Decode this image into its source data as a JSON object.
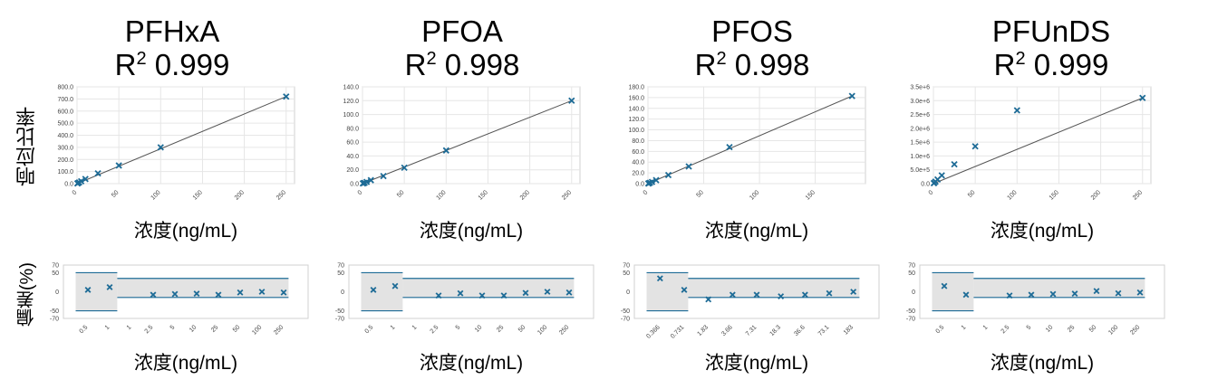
{
  "colors": {
    "marker": "#1d6b96",
    "fit_line": "#555555",
    "limit_line": "#1d6b96",
    "limit_band": "#e3e3e3",
    "grid": "#e6e6e6"
  },
  "shared": {
    "response_ylabel": "响应比率",
    "bias_ylabel": "偏差(%)",
    "xlabel": "浓度(ng/mL)"
  },
  "chart_data": [
    {
      "type": "scatter",
      "compound": "PFHxA",
      "r2": "0.999",
      "title_line1": "PFHxA",
      "r2_prefix": "R",
      "r2_sup": "2",
      "xlabel": "浓度(ng/mL)",
      "ylabel": "响应比率",
      "xlim": [
        0,
        260
      ],
      "ylim": [
        0,
        800
      ],
      "xticks": [
        0,
        50,
        100,
        150,
        200,
        250
      ],
      "yticks": [
        0,
        100,
        200,
        300,
        400,
        500,
        600,
        700,
        800
      ],
      "ytick_labels": [
        "0.0",
        "100.0",
        "200.0",
        "300.0",
        "400.0",
        "500.0",
        "600.0",
        "700.0",
        "800.0"
      ],
      "points": [
        [
          0.5,
          2
        ],
        [
          1,
          4
        ],
        [
          2.5,
          10
        ],
        [
          5,
          20
        ],
        [
          10,
          38
        ],
        [
          25,
          85
        ],
        [
          50,
          150
        ],
        [
          100,
          300
        ],
        [
          250,
          720
        ]
      ],
      "fit": [
        [
          0,
          0
        ],
        [
          250,
          720
        ]
      ],
      "bias": {
        "ylabel": "偏差(%)",
        "ylim": [
          -70,
          70
        ],
        "ytick_labels": [
          "70",
          "50",
          "0",
          "-50",
          "-70"
        ],
        "categories": [
          "0.5",
          "1",
          "1",
          "2.5",
          "5",
          "10",
          "25",
          "50",
          "100",
          "250"
        ],
        "values": [
          5,
          12,
          null,
          -8,
          -6,
          -5,
          -8,
          -2,
          0,
          -2
        ],
        "limit_lines": [
          [
            50,
            -50
          ],
          [
            35,
            -15
          ]
        ]
      }
    },
    {
      "type": "scatter",
      "compound": "PFOA",
      "r2": "0.998",
      "title_line1": "PFOA",
      "r2_prefix": "R",
      "r2_sup": "2",
      "xlabel": "浓度(ng/mL)",
      "ylabel": "响应比率",
      "xlim": [
        0,
        260
      ],
      "ylim": [
        0,
        140
      ],
      "xticks": [
        0,
        50,
        100,
        150,
        200,
        250
      ],
      "yticks": [
        0,
        20,
        40,
        60,
        80,
        100,
        120,
        140
      ],
      "ytick_labels": [
        "0.0",
        "20.0",
        "40.0",
        "60.0",
        "80.0",
        "100.0",
        "120.0",
        "140.0"
      ],
      "points": [
        [
          0.5,
          0.3
        ],
        [
          1,
          0.6
        ],
        [
          2.5,
          1.2
        ],
        [
          5,
          2.5
        ],
        [
          10,
          5
        ],
        [
          25,
          11
        ],
        [
          50,
          23
        ],
        [
          100,
          48
        ],
        [
          250,
          120
        ]
      ],
      "fit": [
        [
          0,
          0
        ],
        [
          250,
          120
        ]
      ],
      "bias": {
        "ylabel": "偏差(%)",
        "ylim": [
          -70,
          70
        ],
        "ytick_labels": [
          "70",
          "50",
          "0",
          "-50",
          "-70"
        ],
        "categories": [
          "0.5",
          "1",
          "1",
          "2.5",
          "5",
          "10",
          "25",
          "50",
          "100",
          "250"
        ],
        "values": [
          5,
          15,
          null,
          -10,
          -4,
          -10,
          -10,
          -3,
          0,
          -2
        ],
        "limit_lines": [
          [
            50,
            -50
          ],
          [
            35,
            -15
          ]
        ]
      }
    },
    {
      "type": "scatter",
      "compound": "PFOS",
      "r2": "0.998",
      "title_line1": "PFOS",
      "r2_prefix": "R",
      "r2_sup": "2",
      "xlabel": "浓度(ng/mL)",
      "ylabel": "响应比率",
      "xlim": [
        0,
        195
      ],
      "ylim": [
        0,
        180
      ],
      "xticks": [
        0,
        50,
        100,
        150
      ],
      "yticks": [
        0,
        20,
        40,
        60,
        80,
        100,
        120,
        140,
        160,
        180
      ],
      "ytick_labels": [
        "0.0",
        "20.0",
        "40.0",
        "60.0",
        "80.0",
        "100.0",
        "120.0",
        "140.0",
        "160.0",
        "180.0"
      ],
      "points": [
        [
          0.366,
          0.3
        ],
        [
          0.731,
          0.6
        ],
        [
          1.83,
          1.6
        ],
        [
          3.66,
          3.2
        ],
        [
          7.31,
          6.5
        ],
        [
          18.3,
          16
        ],
        [
          36.6,
          32
        ],
        [
          73.1,
          68
        ],
        [
          183,
          163
        ]
      ],
      "fit": [
        [
          0,
          0
        ],
        [
          183,
          163
        ]
      ],
      "bias": {
        "ylabel": "偏差(%)",
        "ylim": [
          -70,
          70
        ],
        "ytick_labels": [
          "70",
          "50",
          "0",
          "-50",
          "-70"
        ],
        "categories": [
          "0.366",
          "0.731",
          "1.83",
          "3.66",
          "7.31",
          "18.3",
          "36.6",
          "73.1",
          "183"
        ],
        "values": [
          35,
          5,
          -20,
          -8,
          -8,
          -12,
          -8,
          -4,
          0
        ],
        "limit_lines": [
          [
            50,
            -50
          ],
          [
            35,
            -15
          ]
        ]
      }
    },
    {
      "type": "scatter",
      "compound": "PFUnDS",
      "r2": "0.999",
      "title_line1": "PFUnDS",
      "r2_prefix": "R",
      "r2_sup": "2",
      "xlabel": "浓度(ng/mL)",
      "ylabel": "响应比率",
      "xlim": [
        0,
        260
      ],
      "ylim": [
        0,
        3500000
      ],
      "xticks": [
        0,
        50,
        100,
        150,
        200,
        250
      ],
      "yticks": [
        0,
        500000,
        1000000,
        1500000,
        2000000,
        2500000,
        3000000,
        3500000
      ],
      "ytick_labels": [
        "0.0",
        "5.0e+5",
        "1.0e+6",
        "1.5e+6",
        "2.0e+6",
        "2.5e+6",
        "3.0e+6",
        "3.5e+6"
      ],
      "points": [
        [
          0.5,
          15000
        ],
        [
          1,
          30000
        ],
        [
          2.5,
          75000
        ],
        [
          5,
          150000
        ],
        [
          10,
          300000
        ],
        [
          25,
          700000
        ],
        [
          50,
          1350000
        ],
        [
          100,
          2650000
        ],
        [
          250,
          3100000
        ]
      ],
      "fit": [
        [
          0,
          0
        ],
        [
          250,
          3100000
        ]
      ],
      "bias": {
        "ylabel": "偏差(%)",
        "ylim": [
          -70,
          70
        ],
        "ytick_labels": [
          "70",
          "50",
          "0",
          "-50",
          "-70"
        ],
        "categories": [
          "0.5",
          "1",
          "1",
          "2.5",
          "5",
          "10",
          "25",
          "50",
          "100",
          "250"
        ],
        "values": [
          15,
          -8,
          null,
          -10,
          -8,
          -6,
          -5,
          2,
          -4,
          -2
        ],
        "limit_lines": [
          [
            50,
            -50
          ],
          [
            35,
            -15
          ]
        ]
      }
    }
  ]
}
